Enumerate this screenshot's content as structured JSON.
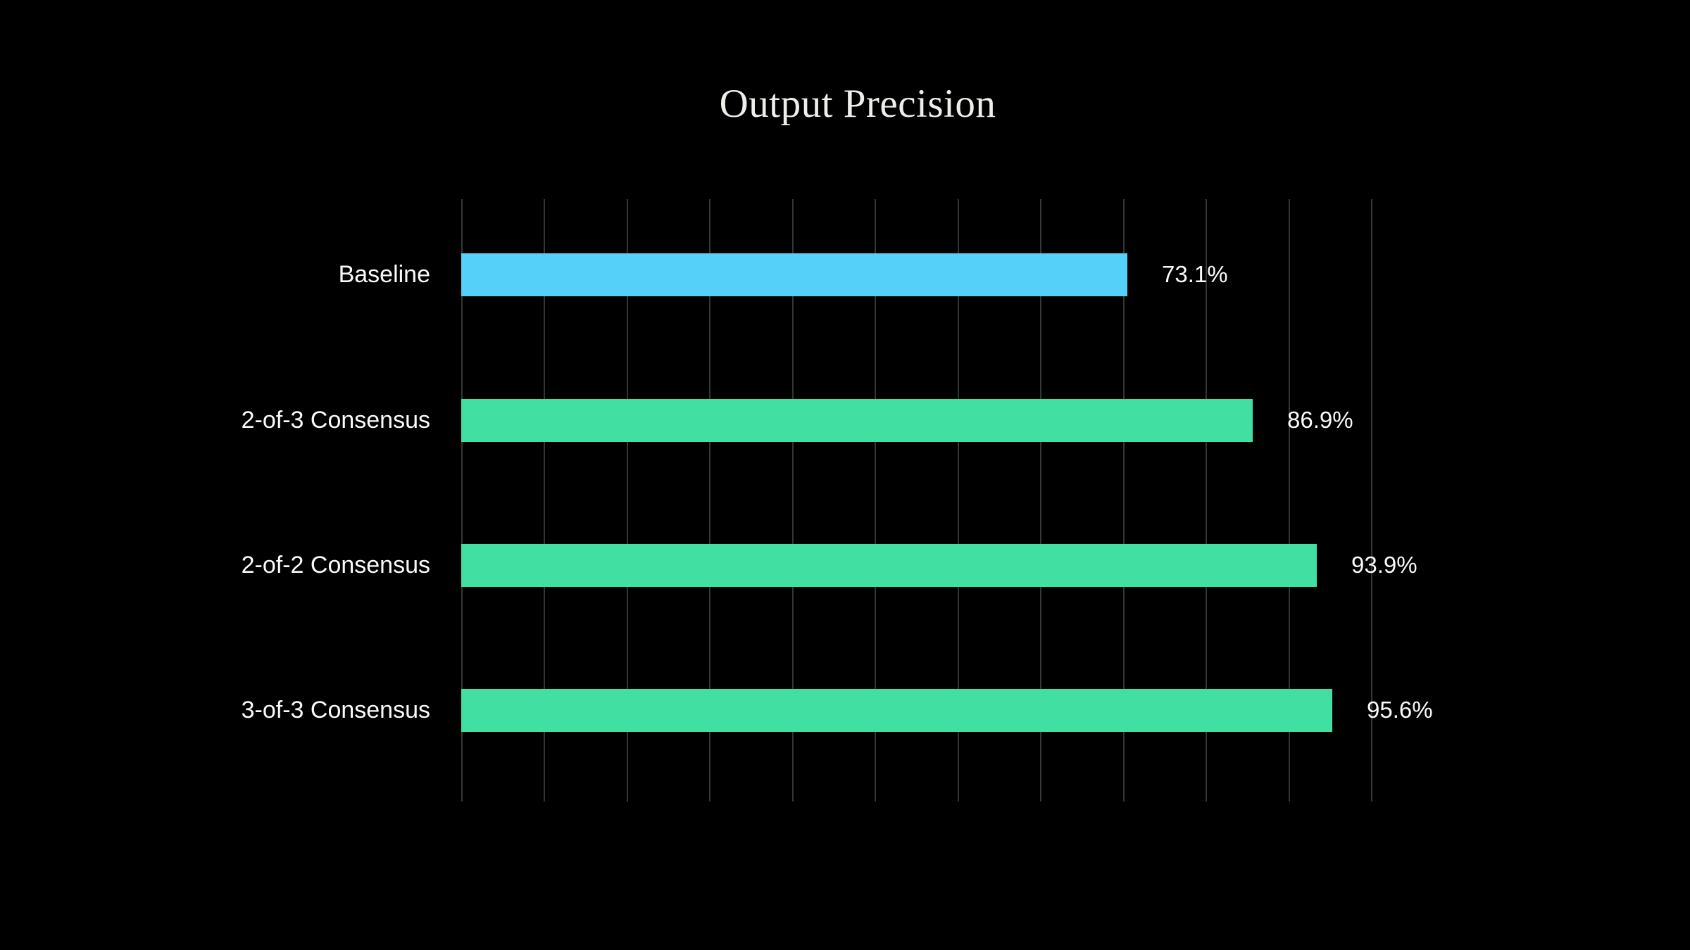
{
  "chart_data": {
    "type": "bar",
    "orientation": "horizontal",
    "title": "Output Precision",
    "categories": [
      "Baseline",
      "2-of-3 Consensus",
      "2-of-2 Consensus",
      "3-of-3 Consensus"
    ],
    "values": [
      73.1,
      86.9,
      93.9,
      95.6
    ],
    "value_labels": [
      "73.1%",
      "86.9%",
      "93.9%",
      "95.6%"
    ],
    "xlim": [
      0,
      100
    ],
    "grid": "vertical-only",
    "gridline_count": 12,
    "legend": "none",
    "axis_tick_labels": [],
    "bar_colors": [
      "#55d1f9",
      "#41dfa1",
      "#41dfa1",
      "#41dfa1"
    ],
    "colors": {
      "background": "#000000",
      "baseline_bar": "#55d1f9",
      "consensus_bar": "#41dfa1",
      "gridline": "#363636",
      "category_text": "#fafafa",
      "value_text": "#fafafa",
      "title_text": "#edefeb"
    }
  }
}
